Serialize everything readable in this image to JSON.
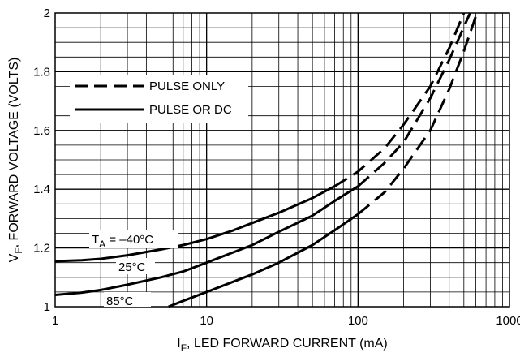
{
  "chart_data": {
    "type": "line",
    "xlabel_main": "I",
    "xlabel_sub": "F",
    "xlabel_rest": ", LED FORWARD CURRENT (mA)",
    "ylabel_main": "V",
    "ylabel_sub": "F",
    "ylabel_rest": ", FORWARD VOLTAGE (VOLTS)",
    "xscale": "log",
    "xlim": [
      1,
      1000
    ],
    "ylim": [
      1,
      2
    ],
    "x_ticks": [
      {
        "value": 1,
        "label": "1"
      },
      {
        "value": 10,
        "label": "10"
      },
      {
        "value": 100,
        "label": "100"
      },
      {
        "value": 1000,
        "label": "1000"
      }
    ],
    "y_ticks": [
      {
        "value": 1,
        "label": "1"
      },
      {
        "value": 1.2,
        "label": "1.2"
      },
      {
        "value": 1.4,
        "label": "1.4"
      },
      {
        "value": 1.6,
        "label": "1.6"
      },
      {
        "value": 1.8,
        "label": "1.8"
      },
      {
        "value": 2,
        "label": "2"
      }
    ],
    "grid": true,
    "legend": {
      "placement": "top-left",
      "entries": [
        {
          "label": "PULSE ONLY",
          "style": "dashed"
        },
        {
          "label": "PULSE OR DC",
          "style": "solid"
        }
      ]
    },
    "annotations": {
      "ta_main": "T",
      "ta_sub": "A",
      "ta_rest": " = –40°C",
      "t25": "25°C",
      "t85": "85°C"
    },
    "series": [
      {
        "x": [
          1,
          1.5,
          2,
          3,
          5,
          7,
          10,
          15,
          20,
          30,
          50,
          70,
          100,
          150,
          200,
          300,
          400,
          500
        ],
        "y": [
          1.155,
          1.158,
          1.163,
          1.175,
          1.195,
          1.21,
          1.23,
          1.26,
          1.285,
          1.32,
          1.37,
          1.41,
          1.46,
          1.54,
          1.62,
          1.75,
          1.88,
          2.0
        ],
        "dc_until": 70
      },
      {
        "x": [
          1,
          1.5,
          2,
          3,
          5,
          7,
          10,
          15,
          20,
          30,
          50,
          70,
          100,
          150,
          200,
          300,
          400,
          550
        ],
        "y": [
          1.04,
          1.048,
          1.057,
          1.075,
          1.1,
          1.12,
          1.15,
          1.185,
          1.21,
          1.255,
          1.31,
          1.36,
          1.41,
          1.49,
          1.56,
          1.71,
          1.84,
          2.0
        ],
        "dc_until": 80
      },
      {
        "x": [
          5.6,
          7,
          10,
          15,
          20,
          30,
          50,
          70,
          100,
          150,
          200,
          300,
          400,
          500,
          610
        ],
        "y": [
          1.0,
          1.02,
          1.05,
          1.085,
          1.11,
          1.15,
          1.21,
          1.26,
          1.315,
          1.39,
          1.47,
          1.6,
          1.74,
          1.87,
          2.0
        ],
        "dc_until": 80
      }
    ]
  }
}
